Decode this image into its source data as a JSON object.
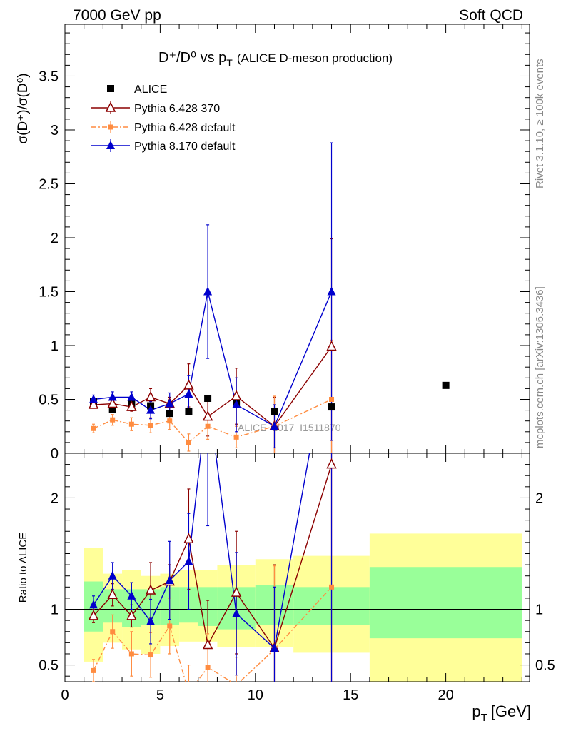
{
  "header": {
    "left": "7000 GeV pp",
    "right": "Soft QCD"
  },
  "side_labels": {
    "rivet": "Rivet 3.1.10, ≥ 100k events",
    "mcplots": "mcplots.cern.ch [arXiv:1306.3436]"
  },
  "watermark": "ALICE_2017_I1511870",
  "chart_data": {
    "type": "line",
    "title": {
      "main": "D⁺/D⁰ vs p",
      "sub": "T",
      "paren": "(ALICE D-meson production)"
    },
    "ylabel": "σ(D⁺)/σ(D⁰)",
    "xlabel": {
      "main": "p",
      "sub": "T",
      "unit": "[GeV]"
    },
    "ratio_ylabel": "Ratio to ALICE",
    "xlim": [
      0,
      24.4
    ],
    "ylim": [
      0,
      3.98
    ],
    "ratio_ylim": [
      0.35,
      2.4
    ],
    "x_ticks": [
      0,
      5,
      10,
      15,
      20
    ],
    "y_ticks": [
      0,
      0.5,
      1,
      1.5,
      2,
      2.5,
      3,
      3.5
    ],
    "y_tick_labels": [
      "0",
      "0.5",
      "1",
      "1.5",
      "2",
      "2.5",
      "3",
      "3.5"
    ],
    "ratio_ticks": [
      0.5,
      1,
      2
    ],
    "ratio_tick_labels": [
      "0.5",
      "1",
      "2"
    ],
    "data_series": {
      "name": "ALICE",
      "x": [
        1.5,
        2.5,
        3.5,
        4.5,
        5.5,
        6.5,
        7.5,
        9,
        11,
        14,
        20
      ],
      "y": [
        0.48,
        0.41,
        0.46,
        0.44,
        0.37,
        0.39,
        0.51,
        0.46,
        0.39,
        0.43,
        0.63
      ]
    },
    "bands": [
      {
        "x0": 1,
        "x1": 2,
        "green": [
          0.8,
          1.25
        ],
        "yellow": [
          0.53,
          1.55
        ]
      },
      {
        "x0": 2,
        "x1": 3,
        "green": [
          0.88,
          1.18
        ],
        "yellow": [
          0.7,
          1.32
        ]
      },
      {
        "x0": 3,
        "x1": 4,
        "green": [
          0.84,
          1.18
        ],
        "yellow": [
          0.64,
          1.35
        ]
      },
      {
        "x0": 4,
        "x1": 5,
        "green": [
          0.86,
          1.18
        ],
        "yellow": [
          0.6,
          1.3
        ]
      },
      {
        "x0": 5,
        "x1": 6,
        "green": [
          0.86,
          1.2
        ],
        "yellow": [
          0.67,
          1.32
        ]
      },
      {
        "x0": 6,
        "x1": 7,
        "green": [
          0.88,
          1.2
        ],
        "yellow": [
          0.71,
          1.35
        ]
      },
      {
        "x0": 7,
        "x1": 8,
        "green": [
          0.85,
          1.2
        ],
        "yellow": [
          0.71,
          1.35
        ]
      },
      {
        "x0": 8,
        "x1": 10,
        "green": [
          0.82,
          1.2
        ],
        "yellow": [
          0.66,
          1.4
        ]
      },
      {
        "x0": 10,
        "x1": 12,
        "green": [
          0.86,
          1.22
        ],
        "yellow": [
          0.66,
          1.45
        ]
      },
      {
        "x0": 12,
        "x1": 16,
        "green": [
          0.86,
          1.2
        ],
        "yellow": [
          0.61,
          1.48
        ]
      },
      {
        "x0": 16,
        "x1": 24,
        "green": [
          0.74,
          1.38
        ],
        "yellow": [
          0.35,
          1.68
        ]
      }
    ],
    "series": [
      {
        "name": "Pythia 6.428 370",
        "color": "#8b0000",
        "marker": "open-triangle",
        "dash": "",
        "x": [
          1.5,
          2.5,
          3.5,
          4.5,
          5.5,
          6.5,
          7.5,
          9,
          11,
          14
        ],
        "y": [
          0.45,
          0.46,
          0.43,
          0.52,
          0.46,
          0.63,
          0.34,
          0.53,
          0.25,
          0.99
        ],
        "err": [
          0.03,
          0.04,
          0.04,
          0.08,
          0.06,
          0.2,
          0.18,
          0.26,
          0.27,
          1.0
        ],
        "ratio": [
          0.94,
          1.13,
          0.94,
          1.17,
          1.25,
          1.63,
          0.68,
          1.15,
          0.65,
          2.3
        ],
        "ratio_err": [
          0.06,
          0.1,
          0.1,
          0.25,
          0.15,
          0.45,
          0.4,
          0.55,
          0.75,
          2.3
        ]
      },
      {
        "name": "Pythia 6.428 default",
        "color": "#ff8c40",
        "marker": "square",
        "dash": "7,3,2,3",
        "x": [
          1.5,
          2.5,
          3.5,
          4.5,
          5.5,
          6.5,
          7.5,
          9,
          11,
          14
        ],
        "y": [
          0.23,
          0.31,
          0.27,
          0.26,
          0.3,
          0.1,
          0.25,
          0.15,
          0.25,
          0.5
        ],
        "err": [
          0.04,
          0.05,
          0.06,
          0.07,
          0.08,
          0.08,
          0.12,
          0.1,
          0.28,
          0.55
        ],
        "ratio": [
          0.45,
          0.8,
          0.6,
          0.59,
          0.85,
          0.25,
          0.48,
          0.32,
          0.64,
          1.2
        ],
        "ratio_err": [
          0.1,
          0.15,
          0.2,
          0.2,
          0.25,
          0.25,
          0.3,
          0.25,
          0.75,
          1.3
        ]
      },
      {
        "name": "Pythia 8.170 default",
        "color": "#0000cd",
        "marker": "triangle",
        "dash": "",
        "x": [
          1.5,
          2.5,
          3.5,
          4.5,
          5.5,
          6.5,
          7.5,
          9,
          11,
          14
        ],
        "y": [
          0.5,
          0.52,
          0.52,
          0.4,
          0.46,
          0.55,
          1.5,
          0.45,
          0.25,
          1.5
        ],
        "err": [
          0.04,
          0.05,
          0.05,
          0.08,
          0.1,
          0.17,
          0.62,
          0.25,
          0.2,
          1.38
        ],
        "ratio": [
          1.04,
          1.3,
          1.12,
          0.89,
          1.26,
          1.43,
          2.95,
          0.96,
          0.65,
          3.5
        ],
        "ratio_err": [
          0.08,
          0.12,
          0.12,
          0.2,
          0.35,
          0.43,
          1.2,
          0.55,
          0.55,
          3.2
        ]
      }
    ]
  }
}
